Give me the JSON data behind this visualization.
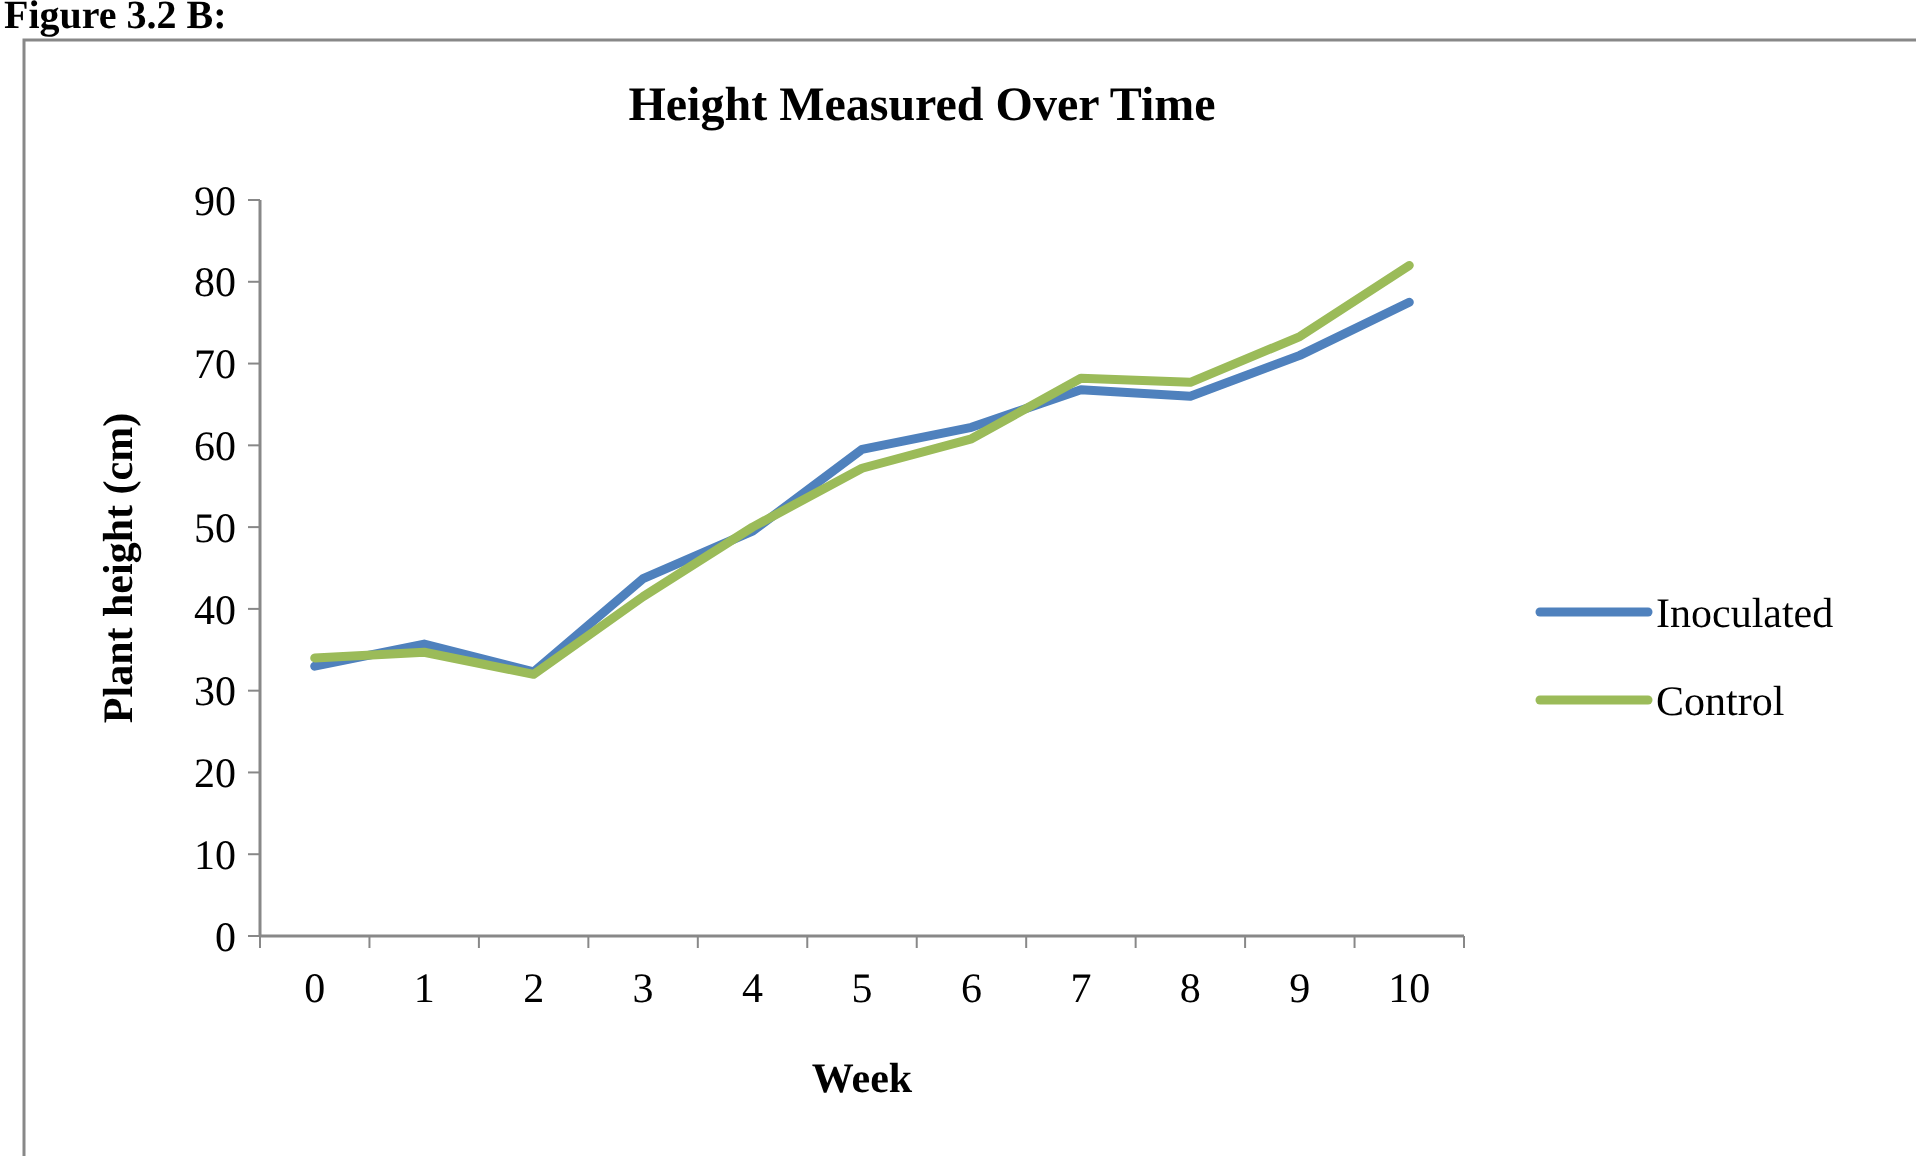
{
  "chart_data": {
    "type": "line",
    "title": "Height Measured Over Time",
    "xlabel": "Week",
    "ylabel": "Plant height (cm)",
    "annotations": [
      "Figure 3.2 B:"
    ],
    "categories": [
      "0",
      "1",
      "2",
      "3",
      "4",
      "5",
      "6",
      "7",
      "8",
      "9",
      "10"
    ],
    "series": [
      {
        "name": "Inoculated",
        "color": "#4f81bd",
        "values": [
          33,
          35.7,
          32.3,
          43.7,
          49.5,
          59.5,
          62.2,
          66.8,
          66,
          71,
          77.5
        ]
      },
      {
        "name": "Control",
        "color": "#9bbb59",
        "values": [
          34,
          34.7,
          32,
          41.5,
          50,
          57.2,
          60.8,
          68.2,
          67.7,
          73.3,
          82
        ]
      }
    ],
    "ylim": [
      0,
      90
    ],
    "yticks": [
      0,
      10,
      20,
      30,
      40,
      50,
      60,
      70,
      80,
      90
    ],
    "grid": false,
    "legend": "right",
    "marker": "none",
    "line_style": "solid"
  }
}
